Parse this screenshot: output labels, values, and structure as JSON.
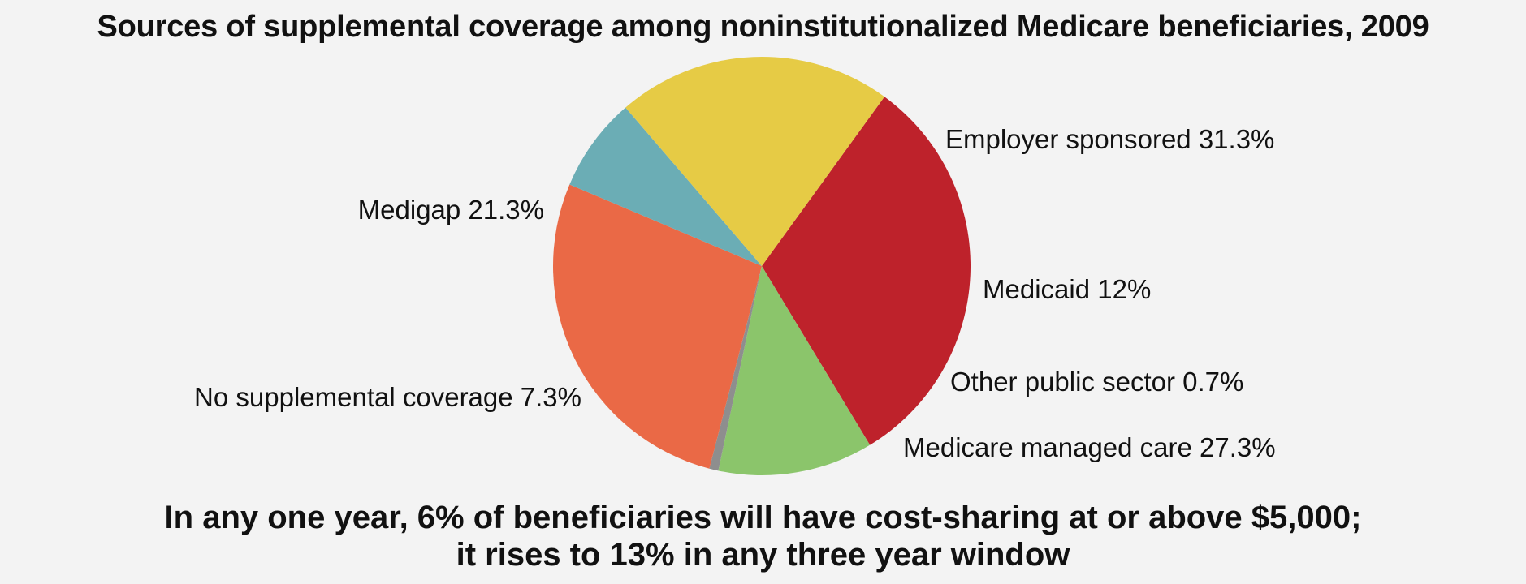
{
  "chart_data": {
    "type": "pie",
    "title": "Sources of supplemental coverage among noninstitutionalized Medicare beneficiaries, 2009",
    "slices": [
      {
        "label": "Employer sponsored 31.3%",
        "category": "Employer sponsored",
        "value": 31.3,
        "color": "#be222b"
      },
      {
        "label": "Medicaid 12%",
        "category": "Medicaid",
        "value": 12,
        "color": "#8bc56b"
      },
      {
        "label": "Other public sector 0.7%",
        "category": "Other public sector",
        "value": 0.7,
        "color": "#8e8e8e"
      },
      {
        "label": "Medicare managed care 27.3%",
        "category": "Medicare managed care",
        "value": 27.3,
        "color": "#ea6946"
      },
      {
        "label": "No supplemental coverage 7.3%",
        "category": "No supplemental coverage",
        "value": 7.3,
        "color": "#6badb5"
      },
      {
        "label": "Medigap 21.3%",
        "category": "Medigap",
        "value": 21.3,
        "color": "#e6cb45"
      }
    ]
  },
  "footer": {
    "line1": "In any one year, 6% of beneficiaries will have cost-sharing at or above $5,000;",
    "line2": "it rises to 13% in any three year window"
  }
}
